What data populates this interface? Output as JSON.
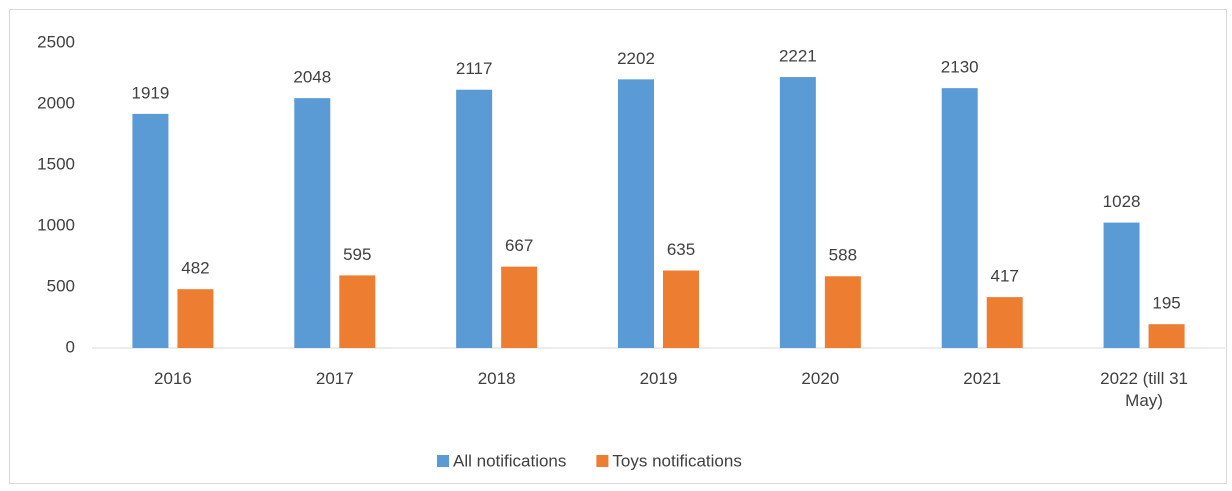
{
  "chart_data": {
    "type": "bar",
    "categories": [
      "2016",
      "2017",
      "2018",
      "2019",
      "2020",
      "2021",
      "2022 (till 31 May)"
    ],
    "series": [
      {
        "name": "All notifications",
        "color": "#5b9bd5",
        "values": [
          1919,
          2048,
          2117,
          2202,
          2221,
          2130,
          1028
        ]
      },
      {
        "name": "Toys notifications",
        "color": "#ed7d31",
        "values": [
          482,
          595,
          667,
          635,
          588,
          417,
          195
        ]
      }
    ],
    "ylim": [
      0,
      2500
    ],
    "yticks": [
      0,
      500,
      1000,
      1500,
      2000,
      2500
    ],
    "grid": false,
    "legend": "bottom"
  }
}
